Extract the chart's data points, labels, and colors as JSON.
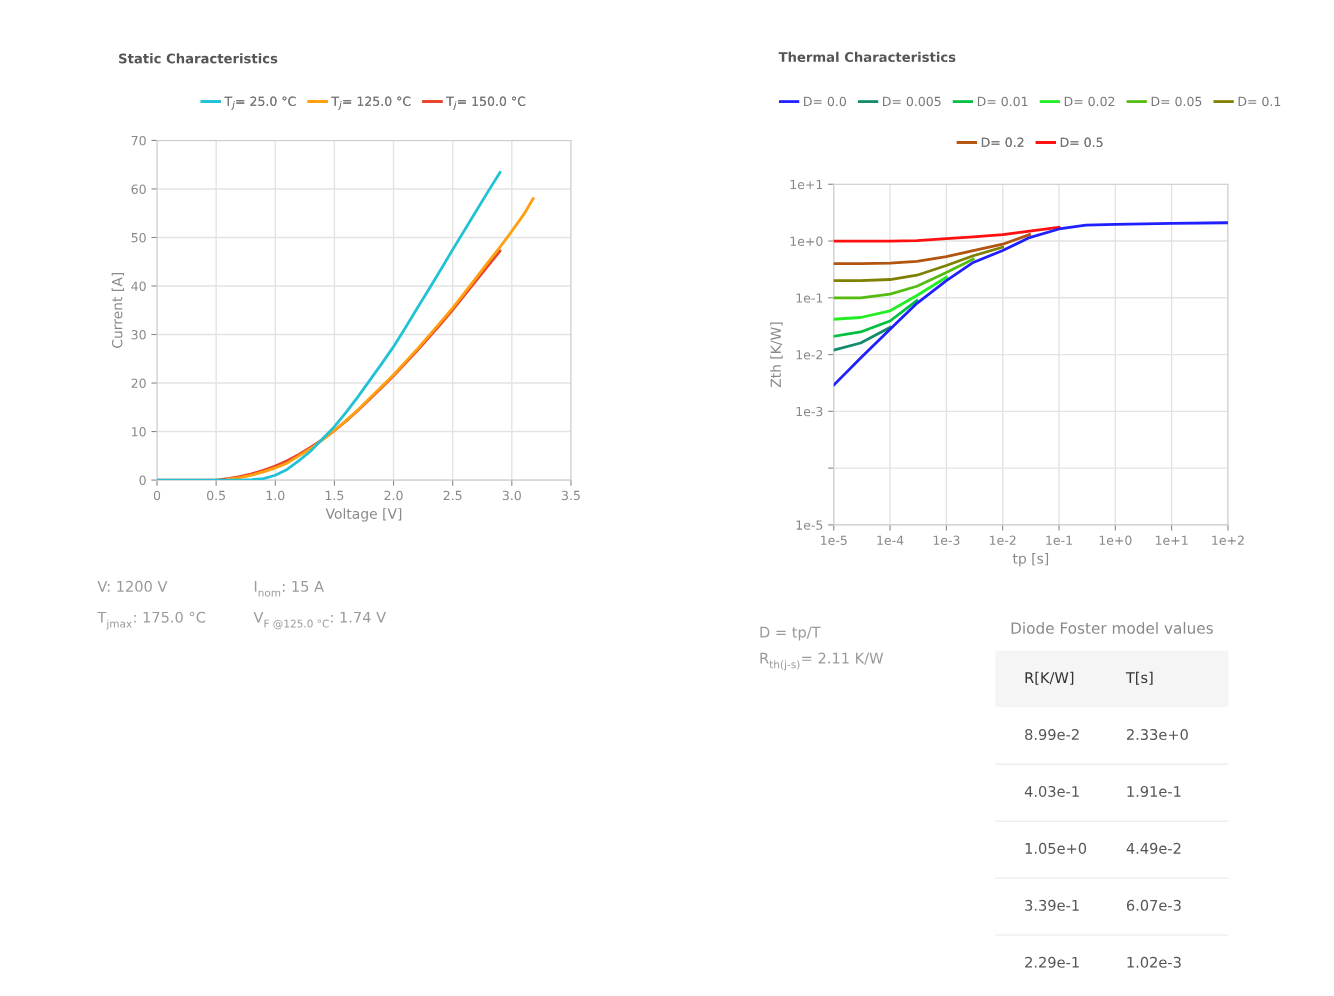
{
  "chart_data": [
    {
      "type": "line",
      "title": "Static Characteristics",
      "xlabel": "Voltage [V]",
      "ylabel": "Current [A]",
      "xlim": [
        0,
        3.5
      ],
      "ylim": [
        0,
        70
      ],
      "xticks": [
        0,
        0.5,
        {
          "value": 1,
          "label": "1.0"
        },
        1.5,
        {
          "value": 2,
          "label": "2.0"
        },
        2.5,
        {
          "value": 3,
          "label": "3.0"
        },
        3.5
      ],
      "yticks": [
        0,
        10,
        20,
        30,
        40,
        50,
        60,
        70
      ],
      "grid": true,
      "legend": "top",
      "marker": "none",
      "line_style": "solid",
      "series": [
        {
          "name": "T$_{j}$= 25.0 °C",
          "color": "#22c2d6",
          "x": [
            0,
            0.5,
            0.7,
            0.8,
            0.9,
            1.0,
            1.1,
            1.2,
            1.3,
            1.4,
            1.5,
            1.6,
            1.7,
            1.8,
            1.9,
            2.0,
            2.1,
            2.2,
            2.3,
            2.4,
            2.5,
            2.6,
            2.7,
            2.8,
            2.9
          ],
          "values": [
            0,
            0,
            0,
            0.1,
            0.3,
            1.0,
            2.2,
            4,
            6,
            8.5,
            11,
            14,
            17.2,
            20.6,
            24,
            27.5,
            31.4,
            35.4,
            39.4,
            43.4,
            47.5,
            51.5,
            55.5,
            59.5,
            63.4
          ]
        },
        {
          "name": "T$_{j}$= 125.0 °C",
          "color": "#ffa010",
          "x": [
            0.6,
            0.7,
            0.8,
            0.9,
            1.0,
            1.1,
            1.2,
            1.3,
            1.4,
            1.5,
            1.6,
            1.7,
            1.8,
            1.9,
            2.0,
            2.2,
            2.4,
            2.5,
            2.6,
            2.8,
            2.9,
            3.0,
            3.1,
            3.18
          ],
          "values": [
            0.2,
            0.5,
            1,
            1.7,
            2.5,
            3.5,
            5,
            6.5,
            8.3,
            10.2,
            12.3,
            14.5,
            16.9,
            19.3,
            21.7,
            27,
            32.6,
            35.5,
            38.6,
            44.9,
            48,
            51.3,
            54.7,
            58
          ]
        },
        {
          "name": "T$_{j}$= 150.0 °C",
          "color": "#e8442a",
          "x": [
            0,
            0.5,
            0.6,
            0.7,
            0.8,
            0.9,
            1.0,
            1.1,
            1.2,
            1.3,
            1.4,
            1.5,
            1.6,
            1.7,
            1.8,
            1.9,
            2.0,
            2.2,
            2.4,
            2.5,
            2.6,
            2.8,
            2.9
          ],
          "values": [
            0,
            0,
            0.3,
            0.7,
            1.3,
            2,
            2.9,
            4,
            5.3,
            6.8,
            8.4,
            10.2,
            12.2,
            14.4,
            16.7,
            19.1,
            21.5,
            26.7,
            32.2,
            35.1,
            38.1,
            44.2,
            47.2
          ]
        }
      ],
      "annotations": [
        "V: 1200 V",
        "I$_{nom}$: 15 A",
        "T$_{jmax}$: 175.0 °C",
        "V$_{F @125.0 °C}$: 1.74 V"
      ]
    },
    {
      "type": "line",
      "title": "Thermal Characteristics",
      "xlabel": "tp [s]",
      "ylabel": "Zth [K/W]",
      "log": "xy",
      "xlim": [
        1e-05,
        100
      ],
      "ylim": [
        1e-05,
        10
      ],
      "xticks": [
        {
          "value": 1e-05,
          "label": "1e-5"
        },
        {
          "value": 0.0001,
          "label": "1e-4"
        },
        {
          "value": 0.001,
          "label": "1e-3"
        },
        {
          "value": 0.01,
          "label": "1e-2"
        },
        {
          "value": 0.1,
          "label": "1e-1"
        },
        {
          "value": 1,
          "label": "1e+0"
        },
        {
          "value": 10,
          "label": "1e+1"
        },
        {
          "value": 100,
          "label": "1e+2"
        }
      ],
      "yticks": [
        {
          "value": 1e-05,
          "label": "1e-5"
        },
        {
          "value": 0.0001,
          "label": null
        },
        {
          "value": 0.001,
          "label": "1e-3"
        },
        {
          "value": 0.01,
          "label": "1e-2"
        },
        {
          "value": 0.1,
          "label": "1e-1"
        },
        {
          "value": 1,
          "label": "1e+0"
        },
        {
          "value": 10,
          "label": "1e+1"
        }
      ],
      "grid": true,
      "legend": "top",
      "marker": "none",
      "line_style": "solid",
      "x": [
        1e-05,
        3e-05,
        0.0001,
        0.0003,
        0.001,
        0.003,
        0.01,
        0.03,
        0.1,
        0.3,
        1,
        10,
        100
      ],
      "series": [
        {
          "name": "D= 0.0",
          "color": "#2020ff",
          "values": [
            0.0029,
            0.0087,
            0.028,
            0.08,
            0.2,
            0.42,
            0.68,
            1.15,
            1.63,
            1.9,
            1.97,
            2.05,
            2.1
          ]
        },
        {
          "name": "D= 0.005",
          "color": "#138a6b",
          "values": [
            0.012,
            0.016,
            0.03,
            null,
            null,
            null,
            null,
            null,
            null,
            null,
            null,
            null,
            null
          ]
        },
        {
          "name": "D= 0.01",
          "color": "#00c040",
          "values": [
            0.021,
            0.025,
            0.039,
            0.09,
            null,
            null,
            null,
            null,
            null,
            null,
            null,
            null,
            null
          ]
        },
        {
          "name": "D= 0.02",
          "color": "#22ee22",
          "values": [
            0.042,
            0.045,
            0.059,
            0.11,
            0.23,
            null,
            null,
            null,
            null,
            null,
            null,
            null,
            null
          ]
        },
        {
          "name": "D= 0.05",
          "color": "#55bb11",
          "values": [
            0.1,
            0.1,
            0.116,
            0.16,
            0.28,
            0.48,
            null,
            null,
            null,
            null,
            null,
            null,
            null
          ]
        },
        {
          "name": "D= 0.1",
          "color": "#7f7f00",
          "values": [
            0.2,
            0.2,
            0.21,
            0.25,
            0.37,
            0.55,
            0.78,
            null,
            null,
            null,
            null,
            null,
            null
          ]
        },
        {
          "name": "D= 0.2",
          "color": "#b35410",
          "values": [
            0.4,
            0.4,
            0.41,
            0.44,
            0.53,
            0.68,
            0.88,
            1.3,
            null,
            null,
            null,
            null,
            null
          ]
        },
        {
          "name": "D= 0.5",
          "color": "#ff1010",
          "values": [
            1.0,
            1.0,
            1.0,
            1.02,
            1.1,
            1.18,
            1.3,
            1.5,
            1.75,
            null,
            null,
            null,
            null
          ]
        }
      ],
      "annotations": [
        "D = tp/T",
        "R$_{th(j-s)}$= 2.11 K/W"
      ]
    },
    {
      "type": "other",
      "title": "Diode Foster model values",
      "categories": [
        "R[K/W]",
        "T[s]"
      ],
      "annotations": [
        "8.99e-2",
        "2.33e+0",
        "4.03e-1",
        "1.91e-1",
        "1.05e+0",
        "4.49e-2",
        "3.39e-1",
        "6.07e-3",
        "2.29e-1",
        "1.02e-3"
      ]
    }
  ]
}
